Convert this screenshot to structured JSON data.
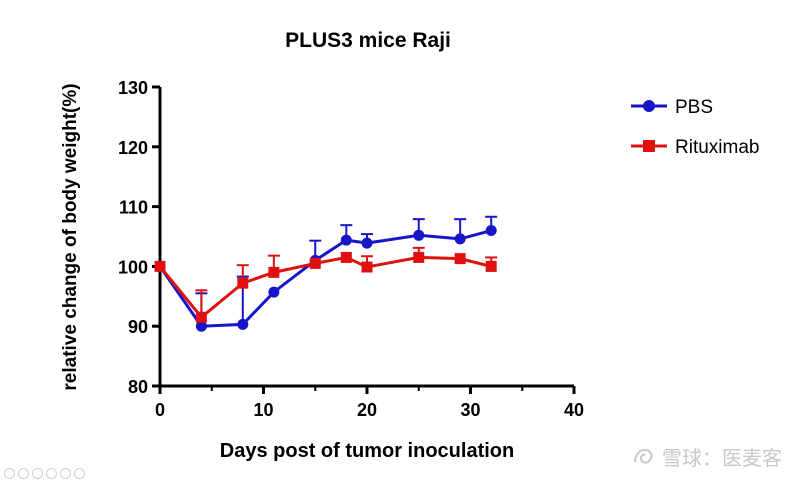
{
  "chart_data": {
    "type": "line",
    "title": "PLUS3 mice Raji",
    "xlabel": "Days post of tumor inoculation",
    "ylabel": "relative change of body weight(%)",
    "xlim": [
      0,
      40
    ],
    "ylim": [
      80,
      130
    ],
    "xticks": [
      "0",
      "10",
      "20",
      "30",
      "40"
    ],
    "yticks": [
      "80",
      "90",
      "100",
      "110",
      "120",
      "130"
    ],
    "grid": false,
    "legend_position": "top-right",
    "series": [
      {
        "name": "PBS",
        "color": "#1616c8",
        "marker": "circle",
        "x": [
          0,
          4,
          8,
          11,
          15,
          18,
          20,
          25,
          29,
          32
        ],
        "y": [
          100,
          90,
          90.3,
          95.7,
          101,
          104.4,
          103.9,
          105.2,
          104.6,
          106
        ],
        "err": [
          0,
          5.5,
          8,
          0,
          3.3,
          2.5,
          1.5,
          2.7,
          3.3,
          2.3
        ]
      },
      {
        "name": "Rituximab",
        "color": "#e01010",
        "marker": "square",
        "x": [
          0,
          4,
          8,
          11,
          15,
          18,
          20,
          25,
          29,
          32
        ],
        "y": [
          100,
          91.5,
          97.2,
          99,
          100.5,
          101.5,
          99.9,
          101.5,
          101.3,
          100
        ],
        "err": [
          0,
          4.5,
          3,
          2.8,
          0,
          0,
          1.8,
          1.6,
          0,
          1.5
        ]
      }
    ]
  },
  "watermark": {
    "text": "雪球：医麦客",
    "icon": "snowball-logo-icon"
  },
  "controls": {
    "icons": [
      "play-icon",
      "step-icon",
      "edit-icon",
      "copy-icon",
      "link-icon",
      "more-icon"
    ]
  }
}
